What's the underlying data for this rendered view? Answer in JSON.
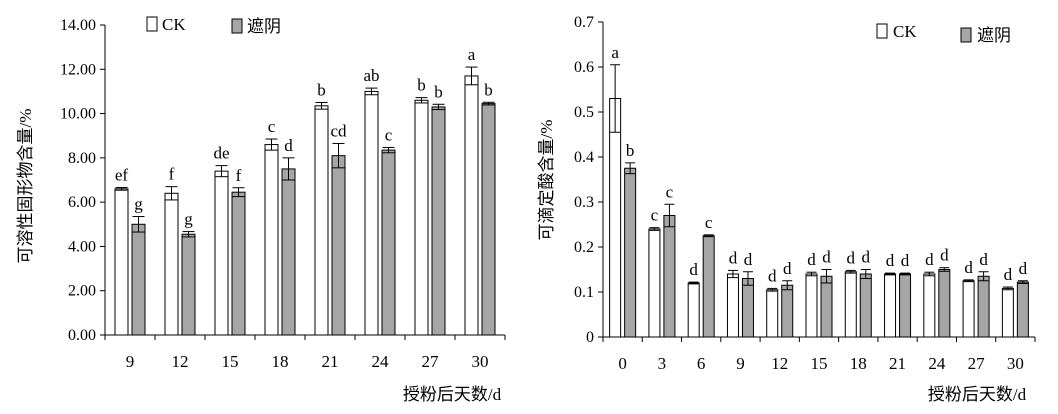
{
  "colors": {
    "ck": "#ffffff",
    "shade": "#a6a6a6",
    "stroke": "#000000"
  },
  "chart_data": [
    {
      "type": "bar",
      "ylabel": "可溶性固形物含量/%",
      "xlabel": "授粉后天数/d",
      "ylim": [
        0,
        14
      ],
      "yticks": [
        "0.00",
        "2.00",
        "4.00",
        "6.00",
        "8.00",
        "10.00",
        "12.00",
        "14.00"
      ],
      "categories": [
        "9",
        "12",
        "15",
        "18",
        "21",
        "24",
        "27",
        "30"
      ],
      "legend": [
        "CK",
        "遮阴"
      ],
      "legend_position": "top-left",
      "series": [
        {
          "name": "CK",
          "values": [
            6.6,
            6.4,
            7.4,
            8.6,
            10.35,
            11.0,
            10.6,
            11.7
          ],
          "errors": [
            0.06,
            0.3,
            0.25,
            0.25,
            0.15,
            0.15,
            0.12,
            0.4
          ],
          "labels": [
            "ef",
            "f",
            "de",
            "c",
            "b",
            "ab",
            "b",
            "a"
          ]
        },
        {
          "name": "遮阴",
          "values": [
            5.0,
            4.55,
            6.45,
            7.5,
            8.1,
            8.35,
            10.3,
            10.45
          ],
          "errors": [
            0.35,
            0.12,
            0.2,
            0.5,
            0.55,
            0.12,
            0.12,
            0.06
          ],
          "labels": [
            "g",
            "g",
            "f",
            "d",
            "cd",
            "c",
            "b",
            "b"
          ]
        }
      ]
    },
    {
      "type": "bar",
      "ylabel": "可滴定酸含量/%",
      "xlabel": "授粉后天数/d",
      "ylim": [
        0,
        0.7
      ],
      "yticks": [
        "0",
        "0.1",
        "0.2",
        "0.3",
        "0.4",
        "0.5",
        "0.6",
        "0.7"
      ],
      "categories": [
        "0",
        "3",
        "6",
        "9",
        "12",
        "15",
        "18",
        "21",
        "24",
        "27",
        "30"
      ],
      "legend": [
        "CK",
        "遮阴"
      ],
      "legend_position": "top-right",
      "series": [
        {
          "name": "CK",
          "values": [
            0.53,
            0.24,
            0.12,
            0.14,
            0.105,
            0.14,
            0.145,
            0.14,
            0.14,
            0.125,
            0.108
          ],
          "errors": [
            0.075,
            0.003,
            0.002,
            0.008,
            0.003,
            0.004,
            0.003,
            0.002,
            0.004,
            0.002,
            0.003
          ],
          "labels": [
            "a",
            "c",
            "d",
            "d",
            "d",
            "d",
            "d",
            "d",
            "d",
            "d",
            "d"
          ]
        },
        {
          "name": "遮阴",
          "values": [
            0.375,
            0.27,
            0.225,
            0.13,
            0.115,
            0.135,
            0.14,
            0.14,
            0.15,
            0.135,
            0.122
          ],
          "errors": [
            0.012,
            0.025,
            0.002,
            0.015,
            0.01,
            0.015,
            0.01,
            0.002,
            0.004,
            0.01,
            0.003
          ],
          "labels": [
            "b",
            "c",
            "c",
            "d",
            "d",
            "d",
            "d",
            "d",
            "d",
            "d",
            "d"
          ]
        }
      ]
    }
  ]
}
